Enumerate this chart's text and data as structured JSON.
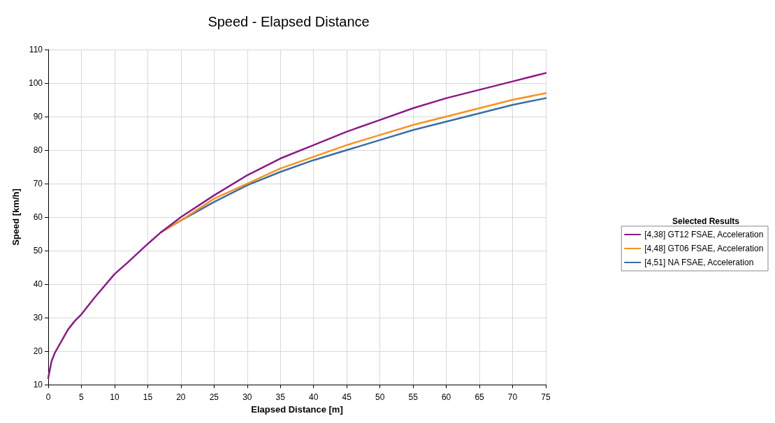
{
  "chart_data": {
    "type": "line",
    "title": "Speed - Elapsed Distance",
    "xlabel": "Elapsed Distance [m]",
    "ylabel": "Speed [km/h]",
    "legend_title": "Selected Results",
    "legend": "right",
    "grid": true,
    "marker": "none",
    "line_style": "solid",
    "xlim": [
      0,
      75
    ],
    "xticks": [
      0,
      5,
      10,
      15,
      20,
      25,
      30,
      35,
      40,
      45,
      50,
      55,
      60,
      65,
      70,
      75
    ],
    "ylim": [
      10,
      110
    ],
    "yticks": [
      10,
      20,
      30,
      40,
      50,
      60,
      70,
      80,
      90,
      100,
      110
    ],
    "x": [
      0,
      0.5,
      1,
      2,
      3,
      4,
      5,
      7,
      10,
      12,
      15,
      17,
      20,
      25,
      30,
      35,
      40,
      45,
      50,
      55,
      60,
      65,
      70,
      75
    ],
    "series": [
      {
        "name": "[4,38] GT12 FSAE, Acceleration",
        "color": "#8b1a89",
        "values": [
          12,
          17,
          19.5,
          23,
          26.5,
          29,
          31,
          36,
          43,
          46.5,
          52,
          55.5,
          60,
          66.5,
          72.5,
          77.5,
          81.5,
          85.5,
          89,
          92.5,
          95.5,
          98,
          100.5,
          103
        ]
      },
      {
        "name": "[4,48] GT06 FSAE, Acceleration",
        "color": "#f7931e",
        "values": [
          null,
          null,
          null,
          null,
          null,
          null,
          null,
          null,
          null,
          null,
          null,
          55.5,
          59,
          65.5,
          70,
          74.5,
          78,
          81.5,
          84.5,
          87.5,
          90,
          92.5,
          95,
          97
        ]
      },
      {
        "name": "[4,51] NA FSAE, Acceleration",
        "color": "#3a6ea5",
        "values": [
          null,
          null,
          null,
          null,
          null,
          null,
          null,
          null,
          null,
          null,
          null,
          55.5,
          59,
          64.5,
          69.5,
          73.5,
          77,
          80,
          83,
          86,
          88.5,
          91,
          93.5,
          95.5
        ]
      }
    ]
  }
}
